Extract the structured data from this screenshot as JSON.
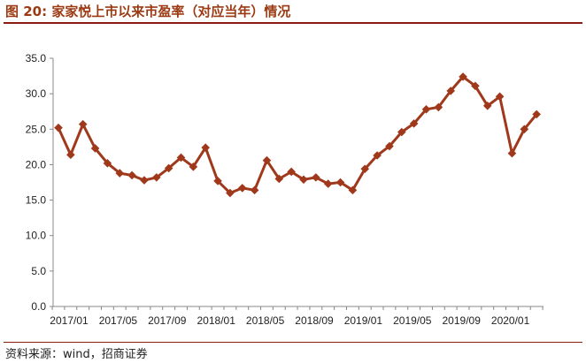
{
  "figure": {
    "title": "图 20:  家家悦上市以来市盈率（对应当年）情况",
    "source": "资料来源：wind，招商证券"
  },
  "colors": {
    "line": "#a0391b",
    "marker": "#a0391b",
    "rule": "#8a1d10",
    "title": "#9b3a12"
  },
  "chart_data": {
    "type": "line",
    "title": "",
    "xlabel": "",
    "ylabel": "",
    "ylim": [
      0,
      35
    ],
    "y_ticks": [
      "0.0",
      "5.0",
      "10.0",
      "15.0",
      "20.0",
      "25.0",
      "30.0",
      "35.0"
    ],
    "x_tick_labels": [
      "2017/01",
      "2017/05",
      "2017/09",
      "2018/01",
      "2018/05",
      "2018/09",
      "2019/01",
      "2019/05",
      "2019/09",
      "2020/01"
    ],
    "grid": false,
    "legend": "none",
    "x": [
      "2017/01",
      "2017/02",
      "2017/03",
      "2017/04",
      "2017/05",
      "2017/06",
      "2017/07",
      "2017/08",
      "2017/09",
      "2017/10",
      "2017/11",
      "2017/12",
      "2018/01",
      "2018/02",
      "2018/03",
      "2018/04",
      "2018/05",
      "2018/06",
      "2018/07",
      "2018/08",
      "2018/09",
      "2018/10",
      "2018/11",
      "2018/12",
      "2019/01",
      "2019/02",
      "2019/03",
      "2019/04",
      "2019/05",
      "2019/06",
      "2019/07",
      "2019/08",
      "2019/09",
      "2019/10",
      "2019/11",
      "2019/12",
      "2020/01",
      "2020/02",
      "2020/03",
      "2020/04"
    ],
    "series": [
      {
        "values": [
          25.2,
          21.4,
          25.7,
          22.3,
          20.2,
          18.8,
          18.5,
          17.8,
          18.2,
          19.5,
          21.0,
          19.7,
          22.4,
          17.7,
          16.0,
          16.7,
          16.4,
          20.6,
          18.0,
          19.0,
          17.9,
          18.2,
          17.3,
          17.5,
          16.4,
          19.4,
          21.3,
          22.6,
          24.6,
          25.8,
          27.8,
          28.1,
          30.4,
          32.4,
          31.1,
          28.3,
          29.6,
          21.6,
          25.0,
          27.1
        ]
      }
    ]
  }
}
